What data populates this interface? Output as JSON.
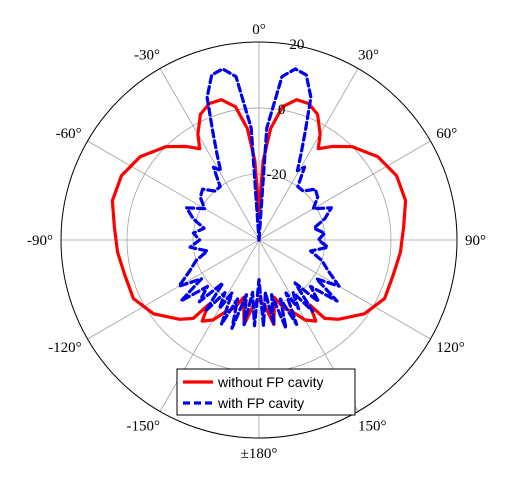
{
  "chart_data": {
    "type": "line",
    "subtype": "polar",
    "rlim": [
      -40,
      20
    ],
    "r_ticks": [
      -20,
      0,
      20
    ],
    "r_tick_labels": [
      "-20",
      "0",
      "20"
    ],
    "angular_step_deg": 30,
    "angular_tick_labels": [
      {
        "deg": 0,
        "label": "0°"
      },
      {
        "deg": 30,
        "label": "30°"
      },
      {
        "deg": 60,
        "label": "60°"
      },
      {
        "deg": 90,
        "label": "90°"
      },
      {
        "deg": 120,
        "label": "120°"
      },
      {
        "deg": 150,
        "label": "150°"
      },
      {
        "deg": 180,
        "label": "±180°"
      },
      {
        "deg": -150,
        "label": "-150°"
      },
      {
        "deg": -120,
        "label": "-120°"
      },
      {
        "deg": -90,
        "label": "-90°"
      },
      {
        "deg": -60,
        "label": "-60°"
      },
      {
        "deg": -30,
        "label": "-30°"
      }
    ],
    "grid": true,
    "legend_position": "bottom-center",
    "series": [
      {
        "name": "without FP cavity",
        "color": "#ff0000",
        "style": "solid",
        "points": [
          [
            0,
            -32
          ],
          [
            3,
            -16
          ],
          [
            6,
            -6
          ],
          [
            10,
            1
          ],
          [
            15,
            4
          ],
          [
            20,
            4
          ],
          [
            25,
            2
          ],
          [
            30,
            -3
          ],
          [
            33,
            -7
          ],
          [
            38,
            -4
          ],
          [
            45,
            0
          ],
          [
            55,
            4
          ],
          [
            65,
            6
          ],
          [
            75,
            6
          ],
          [
            85,
            4
          ],
          [
            95,
            3
          ],
          [
            105,
            2
          ],
          [
            115,
            2
          ],
          [
            125,
            -1
          ],
          [
            135,
            -6
          ],
          [
            140,
            -9
          ],
          [
            142,
            -15
          ],
          [
            145,
            -10
          ],
          [
            150,
            -12
          ],
          [
            155,
            -16
          ],
          [
            160,
            -18
          ],
          [
            165,
            -22
          ],
          [
            170,
            -14
          ],
          [
            175,
            -20
          ],
          [
            180,
            -22
          ],
          [
            -175,
            -20
          ],
          [
            -170,
            -14
          ],
          [
            -165,
            -22
          ],
          [
            -160,
            -18
          ],
          [
            -155,
            -16
          ],
          [
            -150,
            -12
          ],
          [
            -145,
            -10
          ],
          [
            -142,
            -15
          ],
          [
            -140,
            -9
          ],
          [
            -135,
            -6
          ],
          [
            -125,
            -1
          ],
          [
            -115,
            2
          ],
          [
            -105,
            2
          ],
          [
            -95,
            3
          ],
          [
            -85,
            4
          ],
          [
            -75,
            6
          ],
          [
            -65,
            6
          ],
          [
            -55,
            4
          ],
          [
            -45,
            0
          ],
          [
            -38,
            -4
          ],
          [
            -33,
            -7
          ],
          [
            -30,
            -3
          ],
          [
            -25,
            2
          ],
          [
            -20,
            4
          ],
          [
            -15,
            4
          ],
          [
            -10,
            1
          ],
          [
            -6,
            -6
          ],
          [
            -3,
            -16
          ],
          [
            0,
            -32
          ]
        ]
      },
      {
        "name": "with FP cavity",
        "color": "#0000ee",
        "style": "dashed",
        "points": [
          [
            0,
            -40
          ],
          [
            4,
            -6
          ],
          [
            8,
            10
          ],
          [
            12,
            13
          ],
          [
            16,
            12
          ],
          [
            20,
            6
          ],
          [
            23,
            -4
          ],
          [
            26,
            -11
          ],
          [
            29,
            -16
          ],
          [
            32,
            -14
          ],
          [
            36,
            -20
          ],
          [
            42,
            -20
          ],
          [
            48,
            -17
          ],
          [
            54,
            -18
          ],
          [
            60,
            -21
          ],
          [
            66,
            -16
          ],
          [
            72,
            -19
          ],
          [
            78,
            -23
          ],
          [
            84,
            -20
          ],
          [
            90,
            -22
          ],
          [
            96,
            -19
          ],
          [
            102,
            -24
          ],
          [
            108,
            -20
          ],
          [
            114,
            -17
          ],
          [
            120,
            -12
          ],
          [
            124,
            -19
          ],
          [
            128,
            -10
          ],
          [
            132,
            -19
          ],
          [
            136,
            -14
          ],
          [
            140,
            -23
          ],
          [
            143,
            -13
          ],
          [
            147,
            -21
          ],
          [
            150,
            -16
          ],
          [
            153,
            -22
          ],
          [
            156,
            -12
          ],
          [
            160,
            -21
          ],
          [
            163,
            -12
          ],
          [
            167,
            -23
          ],
          [
            170,
            -14
          ],
          [
            173,
            -24
          ],
          [
            177,
            -14
          ],
          [
            180,
            -28
          ],
          [
            -177,
            -14
          ],
          [
            -173,
            -24
          ],
          [
            -170,
            -14
          ],
          [
            -167,
            -23
          ],
          [
            -163,
            -12
          ],
          [
            -160,
            -21
          ],
          [
            -156,
            -12
          ],
          [
            -153,
            -22
          ],
          [
            -150,
            -16
          ],
          [
            -147,
            -21
          ],
          [
            -143,
            -13
          ],
          [
            -140,
            -23
          ],
          [
            -136,
            -14
          ],
          [
            -132,
            -19
          ],
          [
            -128,
            -10
          ],
          [
            -124,
            -19
          ],
          [
            -120,
            -12
          ],
          [
            -114,
            -17
          ],
          [
            -108,
            -20
          ],
          [
            -102,
            -24
          ],
          [
            -96,
            -19
          ],
          [
            -90,
            -22
          ],
          [
            -84,
            -20
          ],
          [
            -78,
            -23
          ],
          [
            -72,
            -19
          ],
          [
            -66,
            -16
          ],
          [
            -60,
            -21
          ],
          [
            -54,
            -18
          ],
          [
            -48,
            -17
          ],
          [
            -42,
            -20
          ],
          [
            -36,
            -20
          ],
          [
            -32,
            -14
          ],
          [
            -29,
            -16
          ],
          [
            -26,
            -11
          ],
          [
            -23,
            -4
          ],
          [
            -20,
            6
          ],
          [
            -16,
            12
          ],
          [
            -12,
            13
          ],
          [
            -8,
            10
          ],
          [
            -4,
            -6
          ],
          [
            0,
            -40
          ]
        ]
      }
    ]
  }
}
